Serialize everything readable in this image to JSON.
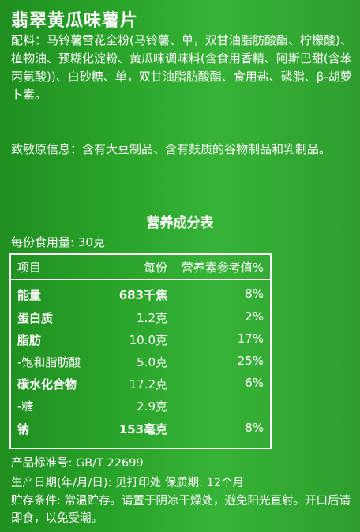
{
  "product_name": "翡翠黄瓜味薯片",
  "ingredients": "配料：马铃薯雪花全粉(马铃薯、单，双甘油脂肪酸酯、柠檬酸)、植物油、预糊化淀粉、黄瓜味调味料(含食用香精、阿斯巴甜(含苯丙氨酸))、白砂糖、单，双甘油脂肪酸酯、食用盐、磷脂、β-胡萝卜素。",
  "allergen": "致敏原信息：含有大豆制品、含有麸质的谷物制品和乳制品。",
  "nutrition": {
    "title": "营养成分表",
    "serving": "每份食用量: 30克",
    "headers": [
      "项目",
      "每份",
      "营养素参考值%"
    ],
    "rows": [
      {
        "item": "能量",
        "value": "683千焦",
        "nrv": "8%"
      },
      {
        "item": "蛋白质",
        "value": "1.2克",
        "nrv": "2%"
      },
      {
        "item": "脂肪",
        "value": "10.0克",
        "nrv": "17%"
      },
      {
        "item": "-饱和脂肪酸",
        "value": "5.0克",
        "nrv": "25%"
      },
      {
        "item": "碳水化合物",
        "value": "17.2克",
        "nrv": "6%"
      },
      {
        "item": "-糖",
        "value": "2.9克",
        "nrv": ""
      },
      {
        "item": "钠",
        "value": "153毫克",
        "nrv": "8%"
      }
    ]
  },
  "standard": "产品标准号: GB/T 22699",
  "dates": "生产日期(年/月/日): 见打印处  保质期: 12个月",
  "storage": "贮存条件: 常温贮存。请置于阴凉干燥处，避免阳光直射。开口后请即食，以免受潮。"
}
